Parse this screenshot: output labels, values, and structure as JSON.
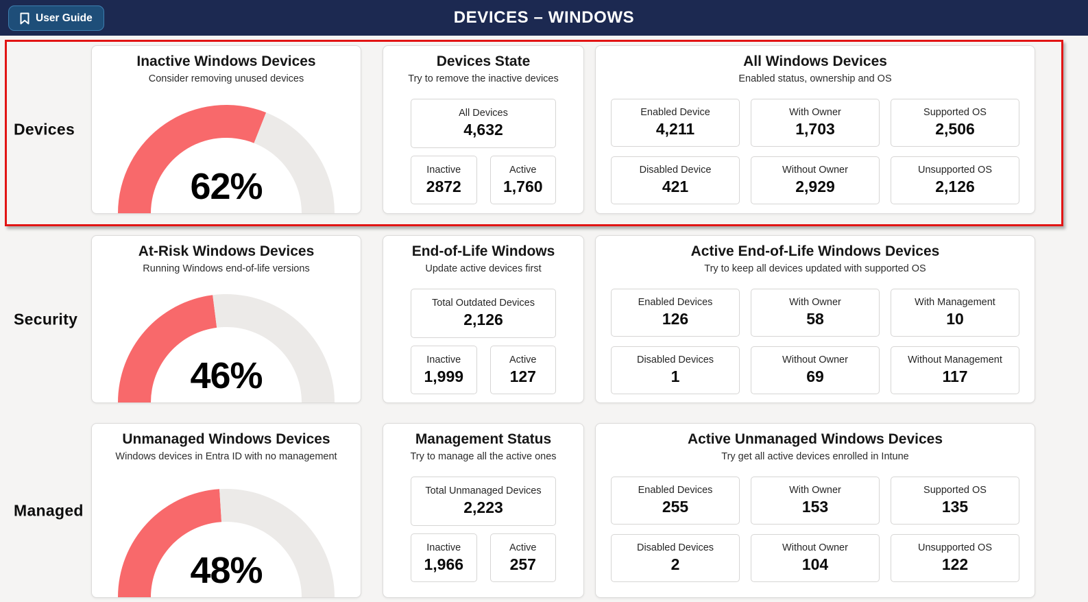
{
  "header": {
    "title": "DEVICES – WINDOWS",
    "user_guide_label": "User Guide"
  },
  "colors": {
    "header_bg": "#1c2951",
    "button_bg": "#1e4e79",
    "highlight_border": "#e21414",
    "gauge_fill": "#f8696b",
    "gauge_track": "#eceae8",
    "page_bg": "#f5f4f3"
  },
  "rows": [
    {
      "label": "Devices",
      "highlighted": true,
      "gauge": {
        "title": "Inactive Windows Devices",
        "subtitle": "Consider removing unused devices",
        "percent": 62,
        "percent_label": "62%"
      },
      "middle": {
        "title": "Devices State",
        "subtitle": "Try to remove the inactive devices",
        "total": {
          "label": "All Devices",
          "value": "4,632"
        },
        "pair": [
          {
            "label": "Inactive",
            "value": "2872"
          },
          {
            "label": "Active",
            "value": "1,760"
          }
        ]
      },
      "right": {
        "title": "All Windows Devices",
        "subtitle": "Enabled status, ownership and OS",
        "stats": [
          {
            "label": "Enabled Device",
            "value": "4,211"
          },
          {
            "label": "With Owner",
            "value": "1,703"
          },
          {
            "label": "Supported OS",
            "value": "2,506"
          },
          {
            "label": "Disabled Device",
            "value": "421"
          },
          {
            "label": "Without Owner",
            "value": "2,929"
          },
          {
            "label": "Unsupported OS",
            "value": "2,126"
          }
        ]
      }
    },
    {
      "label": "Security",
      "highlighted": false,
      "gauge": {
        "title": "At-Risk Windows Devices",
        "subtitle": "Running Windows end-of-life versions",
        "percent": 46,
        "percent_label": "46%"
      },
      "middle": {
        "title": "End-of-Life Windows",
        "subtitle": "Update active devices first",
        "total": {
          "label": "Total Outdated Devices",
          "value": "2,126"
        },
        "pair": [
          {
            "label": "Inactive",
            "value": "1,999"
          },
          {
            "label": "Active",
            "value": "127"
          }
        ]
      },
      "right": {
        "title": "Active End-of-Life Windows Devices",
        "subtitle": "Try to keep all devices updated with supported OS",
        "stats": [
          {
            "label": "Enabled Devices",
            "value": "126"
          },
          {
            "label": "With Owner",
            "value": "58"
          },
          {
            "label": "With Management",
            "value": "10"
          },
          {
            "label": "Disabled Devices",
            "value": "1"
          },
          {
            "label": "Without Owner",
            "value": "69"
          },
          {
            "label": "Without Management",
            "value": "117"
          }
        ]
      }
    },
    {
      "label": "Managed",
      "highlighted": false,
      "gauge": {
        "title": "Unmanaged Windows Devices",
        "subtitle": "Windows devices in Entra ID with no management",
        "percent": 48,
        "percent_label": "48%"
      },
      "middle": {
        "title": "Management Status",
        "subtitle": "Try to manage all the active ones",
        "total": {
          "label": "Total Unmanaged Devices",
          "value": "2,223"
        },
        "pair": [
          {
            "label": "Inactive",
            "value": "1,966"
          },
          {
            "label": "Active",
            "value": "257"
          }
        ]
      },
      "right": {
        "title": "Active Unmanaged Windows Devices",
        "subtitle": "Try get all active devices enrolled in Intune",
        "stats": [
          {
            "label": "Enabled Devices",
            "value": "255"
          },
          {
            "label": "With Owner",
            "value": "153"
          },
          {
            "label": "Supported OS",
            "value": "135"
          },
          {
            "label": "Disabled Devices",
            "value": "2"
          },
          {
            "label": "Without Owner",
            "value": "104"
          },
          {
            "label": "Unsupported OS",
            "value": "122"
          }
        ]
      }
    }
  ],
  "chart_data": [
    {
      "type": "gauge",
      "title": "Inactive Windows Devices",
      "value": 62,
      "max": 100,
      "unit": "%",
      "fill_color": "#f8696b",
      "track_color": "#eceae8",
      "related_values": {
        "all_devices": 4632,
        "inactive": 2872,
        "active": 1760
      }
    },
    {
      "type": "gauge",
      "title": "At-Risk Windows Devices",
      "value": 46,
      "max": 100,
      "unit": "%",
      "fill_color": "#f8696b",
      "track_color": "#eceae8",
      "related_values": {
        "total_outdated": 2126,
        "inactive": 1999,
        "active": 127
      }
    },
    {
      "type": "gauge",
      "title": "Unmanaged Windows Devices",
      "value": 48,
      "max": 100,
      "unit": "%",
      "fill_color": "#f8696b",
      "track_color": "#eceae8",
      "related_values": {
        "total_unmanaged": 2223,
        "inactive": 1966,
        "active": 257
      }
    }
  ]
}
